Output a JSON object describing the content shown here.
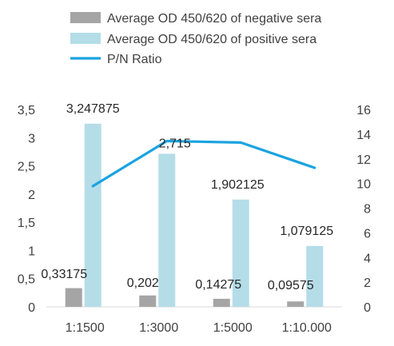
{
  "chart_data": {
    "type": "bar",
    "categories": [
      "1:1500",
      "1:3000",
      "1:5000",
      "1:10.000"
    ],
    "series": [
      {
        "name": "Average OD 450/620 of negative sera",
        "kind": "bar",
        "axis": "left",
        "color": "#a5a5a5",
        "values": [
          0.33175,
          0.202,
          0.14275,
          0.09575
        ],
        "labels": [
          "0,33175",
          "0,202",
          "0,14275",
          "0,09575"
        ]
      },
      {
        "name": "Average OD 450/620 of positive sera",
        "kind": "bar",
        "axis": "left",
        "color": "#b4dde8",
        "values": [
          3.247875,
          2.715,
          1.902125,
          1.079125
        ],
        "labels": [
          "3,247875",
          "2,715",
          "1,902125",
          "1,079125"
        ]
      },
      {
        "name": "P/N Ratio",
        "kind": "line",
        "axis": "right",
        "color": "#1aa3e0",
        "values": [
          9.79,
          13.44,
          13.32,
          11.27
        ]
      }
    ],
    "y_left": {
      "range": [
        0,
        3.5
      ],
      "ticks": [
        0,
        0.5,
        1,
        1.5,
        2,
        2.5,
        3,
        3.5
      ],
      "tick_labels": [
        "0",
        "0,5",
        "1",
        "1,5",
        "2",
        "2,5",
        "3",
        "3,5"
      ]
    },
    "y_right": {
      "range": [
        0,
        16
      ],
      "ticks": [
        0,
        2,
        4,
        6,
        8,
        10,
        12,
        14,
        16
      ],
      "tick_labels": [
        "0",
        "2",
        "4",
        "6",
        "8",
        "10",
        "12",
        "14",
        "16"
      ]
    },
    "grid": false,
    "legend": "top"
  }
}
